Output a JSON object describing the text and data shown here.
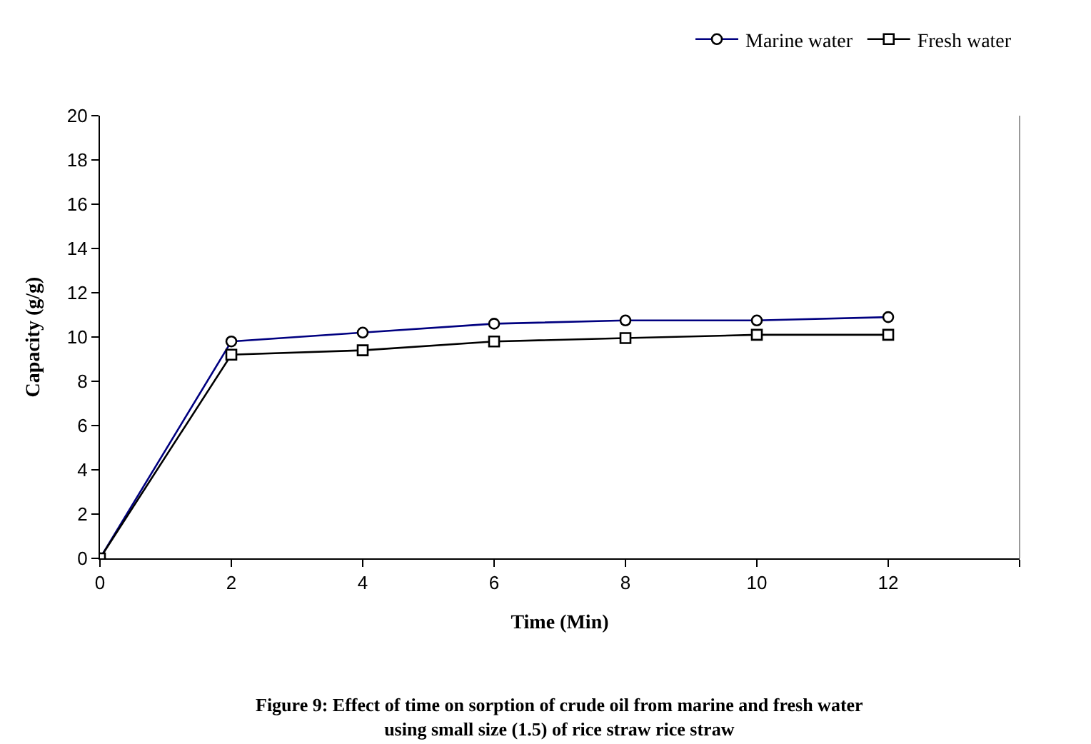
{
  "chart_data": {
    "type": "line",
    "xlabel": "Time (Min)",
    "ylabel": "Capacity (g/g)",
    "x": [
      0,
      2,
      4,
      6,
      8,
      10,
      12
    ],
    "series": [
      {
        "name": "Marine water",
        "color": "#000080",
        "values": [
          0,
          9.8,
          10.2,
          10.6,
          10.75,
          10.75,
          10.9
        ],
        "marker": "circle"
      },
      {
        "name": "Fresh water",
        "color": "#000000",
        "values": [
          0,
          9.2,
          9.4,
          9.8,
          9.95,
          10.1,
          10.1
        ],
        "marker": "square"
      }
    ],
    "xlim": [
      0,
      14
    ],
    "xticks": [
      0,
      2,
      4,
      6,
      8,
      10,
      12,
      {
        "value": 14,
        "label": null
      }
    ],
    "ylim": [
      0,
      20
    ],
    "yticks": [
      0,
      2,
      4,
      6,
      8,
      10,
      12,
      14,
      16,
      18,
      20
    ],
    "grid": false,
    "legend": "top right",
    "line_style": "solid",
    "annotations": [
      "Figure 9: Effect of time on sorption of crude oil from marine and fresh water\nusing small size (1.5) of rice straw rice straw"
    ]
  }
}
